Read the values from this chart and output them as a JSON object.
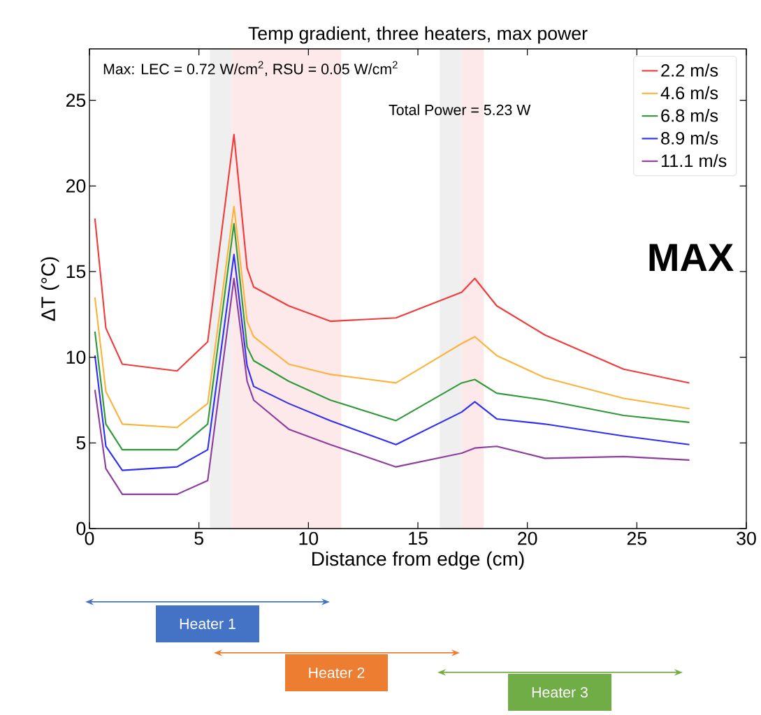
{
  "chart_data": {
    "type": "line",
    "title": "Temp gradient, three heaters, max power",
    "xlabel": "Distance from edge (cm)",
    "ylabel": "ΔT (°C)",
    "x": [
      0.25,
      0.75,
      1.5,
      4,
      5.4,
      6.6,
      7.2,
      7.5,
      9.1,
      11,
      14,
      17,
      17.6,
      18.6,
      20.8,
      24.4,
      27.4
    ],
    "series": [
      {
        "name": "2.2 m/s",
        "color": "#f23b3b",
        "values": [
          18.1,
          11.7,
          9.6,
          9.2,
          10.9,
          23.0,
          15.2,
          14.1,
          13.0,
          12.1,
          12.3,
          13.8,
          14.6,
          13.0,
          11.3,
          9.3,
          8.5
        ]
      },
      {
        "name": "4.6 m/s",
        "color": "#fbb33b",
        "values": [
          13.5,
          8.0,
          6.1,
          5.9,
          7.3,
          18.8,
          12.1,
          11.2,
          9.6,
          9.0,
          8.5,
          10.8,
          11.2,
          10.1,
          8.8,
          7.6,
          7.0
        ]
      },
      {
        "name": "6.8 m/s",
        "color": "#2e9a3a",
        "values": [
          11.5,
          6.1,
          4.6,
          4.6,
          6.1,
          17.8,
          10.6,
          9.8,
          8.6,
          7.5,
          6.3,
          8.5,
          8.7,
          7.9,
          7.5,
          6.6,
          6.2
        ]
      },
      {
        "name": "8.9 m/s",
        "color": "#2f2ff5",
        "values": [
          10.1,
          4.8,
          3.4,
          3.6,
          4.6,
          16.0,
          9.5,
          8.3,
          7.3,
          6.3,
          4.9,
          6.8,
          7.4,
          6.4,
          6.1,
          5.4,
          4.9
        ]
      },
      {
        "name": "11.1 m/s",
        "color": "#8e3c9e",
        "values": [
          8.1,
          3.5,
          2.0,
          2.0,
          2.8,
          14.6,
          8.6,
          7.5,
          5.8,
          4.9,
          3.6,
          4.4,
          4.7,
          4.8,
          4.1,
          4.2,
          4.0
        ]
      }
    ],
    "xlim": [
      0,
      30
    ],
    "ylim": [
      0,
      28
    ],
    "xticks": [
      0,
      5,
      10,
      15,
      20,
      25,
      30
    ],
    "yticks": [
      0,
      5,
      10,
      15,
      20,
      25
    ],
    "bands": [
      {
        "axis": "x",
        "from": 5.5,
        "to": 6.5,
        "color": "#efefef"
      },
      {
        "axis": "x",
        "from": 6.5,
        "to": 11.5,
        "color": "#fde9e9"
      },
      {
        "axis": "x",
        "from": 16,
        "to": 17,
        "color": "#efefef"
      },
      {
        "axis": "x",
        "from": 17,
        "to": 18,
        "color": "#fde9e9"
      }
    ],
    "annotations": [
      "Max: LEC = 0.72 W/cm$^{2}$, RSU = 0.05 W/cm$^{2}$",
      "Total Power = 5.23 W",
      "MAX",
      "Heater 1",
      "Heater 2",
      "Heater 3"
    ],
    "legend": "top right",
    "grid": false,
    "marker": "none",
    "line_style": "solid"
  }
}
